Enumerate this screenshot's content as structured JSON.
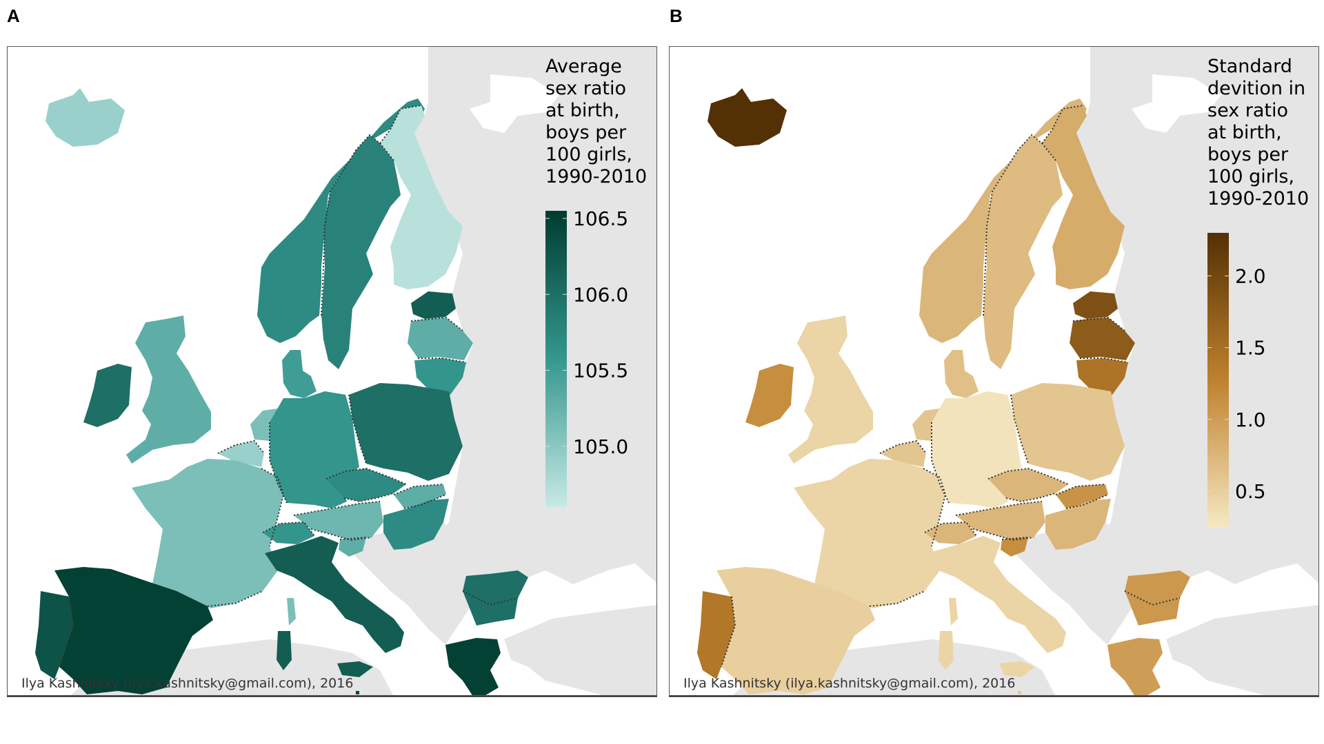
{
  "figure": {
    "panels": [
      {
        "letter": "A",
        "legend_title": "Average\nsex ratio\nat birth,\nboys per\n100 girls,\n1990-2010",
        "credit": "Ilya Kashnitsky (ilya.kashnitsky@gmail.com), 2016"
      },
      {
        "letter": "B",
        "legend_title": "Standard\ndevition in\nsex ratio\nat birth,\nboys per\n100 girls,\n1990-2010",
        "credit": "Ilya Kashnitsky (ilya.kashnitsky@gmail.com), 2016"
      }
    ]
  },
  "chart_data": [
    {
      "type": "choropleth",
      "panel": "A",
      "title": "Average sex ratio at birth, boys per 100 girls, 1990-2010",
      "colorbar": {
        "range": [
          104.6,
          106.55
        ],
        "ticks": [
          "105.0",
          "105.5",
          "106.0",
          "106.5"
        ],
        "tick_values": [
          105.0,
          105.5,
          106.0,
          106.5
        ],
        "color_low": "#c7eae5",
        "color_mid": "#35978f",
        "color_high": "#003c30",
        "placement": "right"
      },
      "no_data_color": "#e5e5e5",
      "regions": [
        {
          "name": "Iceland",
          "value": 104.9
        },
        {
          "name": "Norway",
          "value": 105.7
        },
        {
          "name": "Sweden",
          "value": 105.8
        },
        {
          "name": "Finland",
          "value": 104.7
        },
        {
          "name": "Estonia",
          "value": 106.2
        },
        {
          "name": "Latvia",
          "value": 105.3
        },
        {
          "name": "Lithuania",
          "value": 105.6
        },
        {
          "name": "Denmark",
          "value": 105.5
        },
        {
          "name": "United Kingdom",
          "value": 105.3
        },
        {
          "name": "Ireland",
          "value": 106.0
        },
        {
          "name": "Netherlands",
          "value": 105.1
        },
        {
          "name": "Belgium",
          "value": 104.9
        },
        {
          "name": "France",
          "value": 105.1
        },
        {
          "name": "Germany",
          "value": 105.6
        },
        {
          "name": "Poland",
          "value": 106.0
        },
        {
          "name": "Czech Republic",
          "value": 105.7
        },
        {
          "name": "Slovakia",
          "value": 105.3
        },
        {
          "name": "Hungary",
          "value": 105.7
        },
        {
          "name": "Austria",
          "value": 105.2
        },
        {
          "name": "Switzerland",
          "value": 105.6
        },
        {
          "name": "Slovenia",
          "value": 105.3
        },
        {
          "name": "Italy",
          "value": 106.2
        },
        {
          "name": "Spain",
          "value": 106.5
        },
        {
          "name": "Portugal",
          "value": 106.3
        },
        {
          "name": "Greece",
          "value": 106.5
        },
        {
          "name": "Bulgaria",
          "value": 106.0
        },
        {
          "name": "Malta",
          "value": 106.4
        },
        {
          "name": "Corsica (France)",
          "value": 105.1
        },
        {
          "name": "Sardinia (Italy)",
          "value": 106.2
        },
        {
          "name": "Sicily (Italy)",
          "value": 106.2
        },
        {
          "name": "Crete (Greece)",
          "value": 106.5
        }
      ]
    },
    {
      "type": "choropleth",
      "panel": "B",
      "title": "Standard devition in sex ratio at birth, boys per 100 girls, 1990-2010",
      "colorbar": {
        "range": [
          0.25,
          2.3
        ],
        "ticks": [
          "0.5",
          "1.0",
          "1.5",
          "2.0"
        ],
        "tick_values": [
          0.5,
          1.0,
          1.5,
          2.0
        ],
        "color_low": "#f6e8c3",
        "color_mid": "#bf812d",
        "color_high": "#543005",
        "placement": "right"
      },
      "no_data_color": "#e5e5e5",
      "regions": [
        {
          "name": "Iceland",
          "value": 2.3
        },
        {
          "name": "Norway",
          "value": 0.75
        },
        {
          "name": "Sweden",
          "value": 0.7
        },
        {
          "name": "Finland",
          "value": 0.85
        },
        {
          "name": "Estonia",
          "value": 1.9
        },
        {
          "name": "Latvia",
          "value": 1.75
        },
        {
          "name": "Lithuania",
          "value": 1.45
        },
        {
          "name": "Denmark",
          "value": 0.65
        },
        {
          "name": "United Kingdom",
          "value": 0.45
        },
        {
          "name": "Ireland",
          "value": 1.15
        },
        {
          "name": "Netherlands",
          "value": 0.6
        },
        {
          "name": "Belgium",
          "value": 0.6
        },
        {
          "name": "France",
          "value": 0.45
        },
        {
          "name": "Germany",
          "value": 0.3
        },
        {
          "name": "Poland",
          "value": 0.6
        },
        {
          "name": "Czech Republic",
          "value": 0.75
        },
        {
          "name": "Slovakia",
          "value": 1.1
        },
        {
          "name": "Hungary",
          "value": 0.75
        },
        {
          "name": "Austria",
          "value": 0.75
        },
        {
          "name": "Switzerland",
          "value": 0.75
        },
        {
          "name": "Slovenia",
          "value": 1.15
        },
        {
          "name": "Italy",
          "value": 0.45
        },
        {
          "name": "Spain",
          "value": 0.5
        },
        {
          "name": "Portugal",
          "value": 1.4
        },
        {
          "name": "Greece",
          "value": 1.0
        },
        {
          "name": "Bulgaria",
          "value": 1.05
        },
        {
          "name": "Malta",
          "value": 0.55
        },
        {
          "name": "Corsica (France)",
          "value": 0.45
        },
        {
          "name": "Sardinia (Italy)",
          "value": 0.45
        },
        {
          "name": "Sicily (Italy)",
          "value": 0.45
        },
        {
          "name": "Crete (Greece)",
          "value": 1.0
        }
      ]
    }
  ]
}
